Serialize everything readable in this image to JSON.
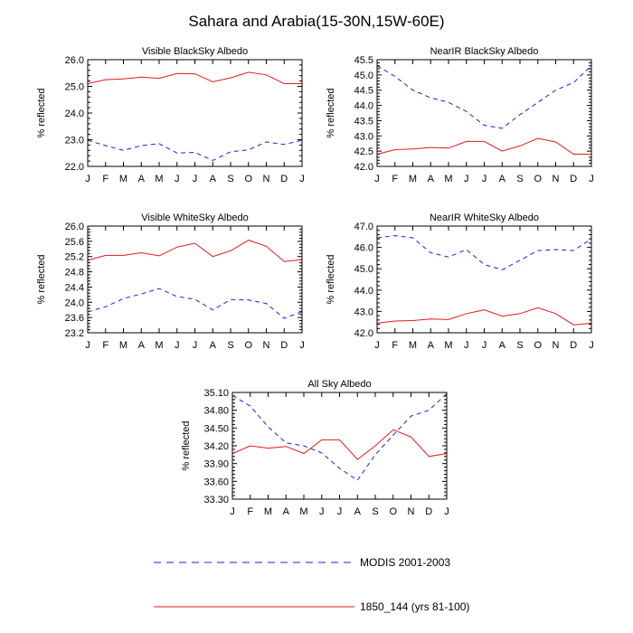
{
  "figure": {
    "title": "Sahara and Arabia(15-30N,15W-60E)"
  },
  "legend": {
    "items": [
      {
        "label": "MODIS 2001-2003",
        "color": "#1f1fd6",
        "dash": "dashed"
      },
      {
        "label": "1850_144 (yrs 81-100)",
        "color": "#e31a1c",
        "dash": "solid"
      }
    ]
  },
  "chart_data": [
    {
      "type": "line",
      "title": "Visible BlackSky Albedo",
      "ylabel": "% reflected",
      "categories": [
        "J",
        "F",
        "M",
        "A",
        "M",
        "J",
        "J",
        "A",
        "S",
        "O",
        "N",
        "D",
        "J"
      ],
      "ylim": [
        22.0,
        26.0
      ],
      "yticks": [
        22.0,
        23.0,
        24.0,
        25.0,
        26.0
      ],
      "ytick_labels": [
        "22.0",
        "23.0",
        "24.0",
        "25.0",
        "26.0"
      ],
      "series": [
        {
          "name": "MODIS 2001-2003",
          "values": [
            22.98,
            22.78,
            22.6,
            22.78,
            22.85,
            22.5,
            22.53,
            22.22,
            22.55,
            22.62,
            22.92,
            22.82,
            22.98
          ]
        },
        {
          "name": "1850_144 (yrs 81-100)",
          "values": [
            25.1,
            25.25,
            25.28,
            25.35,
            25.3,
            25.48,
            25.47,
            25.17,
            25.32,
            25.53,
            25.43,
            25.1,
            25.1
          ]
        }
      ]
    },
    {
      "type": "line",
      "title": "NearIR BlackSky Albedo",
      "ylabel": "% reflected",
      "categories": [
        "J",
        "F",
        "M",
        "A",
        "M",
        "J",
        "J",
        "A",
        "S",
        "O",
        "N",
        "D",
        "J"
      ],
      "ylim": [
        42.0,
        45.5
      ],
      "yticks": [
        42.0,
        42.5,
        43.0,
        43.5,
        44.0,
        44.5,
        45.0,
        45.5
      ],
      "ytick_labels": [
        "42.0",
        "42.5",
        "43.0",
        "43.5",
        "44.0",
        "44.5",
        "45.0",
        "45.5"
      ],
      "series": [
        {
          "name": "MODIS 2001-2003",
          "values": [
            45.3,
            44.95,
            44.5,
            44.25,
            44.1,
            43.8,
            43.35,
            43.25,
            43.7,
            44.1,
            44.5,
            44.75,
            45.3
          ]
        },
        {
          "name": "1850_144 (yrs 81-100)",
          "values": [
            42.4,
            42.55,
            42.57,
            42.62,
            42.6,
            42.82,
            42.82,
            42.5,
            42.67,
            42.92,
            42.8,
            42.4,
            42.4
          ]
        }
      ]
    },
    {
      "type": "line",
      "title": "Visible WhiteSky Albedo",
      "ylabel": "% reflected",
      "categories": [
        "J",
        "F",
        "M",
        "A",
        "M",
        "J",
        "J",
        "A",
        "S",
        "O",
        "N",
        "D",
        "J"
      ],
      "ylim": [
        23.2,
        26.0
      ],
      "yticks": [
        23.2,
        23.6,
        24.0,
        24.4,
        24.8,
        25.2,
        25.6,
        26.0
      ],
      "ytick_labels": [
        "23.2",
        "23.6",
        "24.0",
        "24.4",
        "24.8",
        "25.2",
        "25.6",
        "26.0"
      ],
      "series": [
        {
          "name": "MODIS 2001-2003",
          "values": [
            23.75,
            23.88,
            24.1,
            24.22,
            24.36,
            24.15,
            24.08,
            23.8,
            24.07,
            24.06,
            23.97,
            23.58,
            23.75
          ]
        },
        {
          "name": "1850_144 (yrs 81-100)",
          "values": [
            25.1,
            25.23,
            25.23,
            25.3,
            25.22,
            25.45,
            25.55,
            25.2,
            25.35,
            25.63,
            25.47,
            25.07,
            25.12
          ]
        }
      ]
    },
    {
      "type": "line",
      "title": "NearIR WhiteSky Albedo",
      "ylabel": "% reflected",
      "categories": [
        "J",
        "F",
        "M",
        "A",
        "M",
        "J",
        "J",
        "A",
        "S",
        "O",
        "N",
        "D",
        "J"
      ],
      "ylim": [
        42.0,
        47.0
      ],
      "yticks": [
        42.0,
        43.0,
        44.0,
        45.0,
        46.0,
        47.0
      ],
      "ytick_labels": [
        "42.0",
        "43.0",
        "44.0",
        "45.0",
        "46.0",
        "47.0"
      ],
      "series": [
        {
          "name": "MODIS 2001-2003",
          "values": [
            46.45,
            46.55,
            46.45,
            45.75,
            45.55,
            45.9,
            45.2,
            44.95,
            45.4,
            45.85,
            45.9,
            45.85,
            46.4
          ]
        },
        {
          "name": "1850_144 (yrs 81-100)",
          "values": [
            42.45,
            42.55,
            42.57,
            42.65,
            42.62,
            42.9,
            43.07,
            42.78,
            42.9,
            43.17,
            42.9,
            42.37,
            42.45
          ]
        }
      ]
    },
    {
      "type": "line",
      "title": "All Sky Albedo",
      "ylabel": "% reflected",
      "categories": [
        "J",
        "F",
        "M",
        "A",
        "M",
        "J",
        "J",
        "A",
        "S",
        "O",
        "N",
        "D",
        "J"
      ],
      "ylim": [
        33.3,
        35.1
      ],
      "yticks": [
        33.3,
        33.6,
        33.9,
        34.2,
        34.5,
        34.8,
        35.1
      ],
      "ytick_labels": [
        "33.30",
        "33.60",
        "33.90",
        "34.20",
        "34.50",
        "34.80",
        "35.10"
      ],
      "series": [
        {
          "name": "MODIS 2001-2003",
          "values": [
            35.05,
            34.87,
            34.52,
            34.25,
            34.2,
            34.08,
            33.82,
            33.62,
            34.05,
            34.38,
            34.7,
            34.8,
            35.08
          ]
        },
        {
          "name": "1850_144 (yrs 81-100)",
          "values": [
            34.07,
            34.2,
            34.16,
            34.19,
            34.07,
            34.3,
            34.3,
            33.97,
            34.2,
            34.47,
            34.35,
            34.02,
            34.07
          ]
        }
      ]
    }
  ]
}
